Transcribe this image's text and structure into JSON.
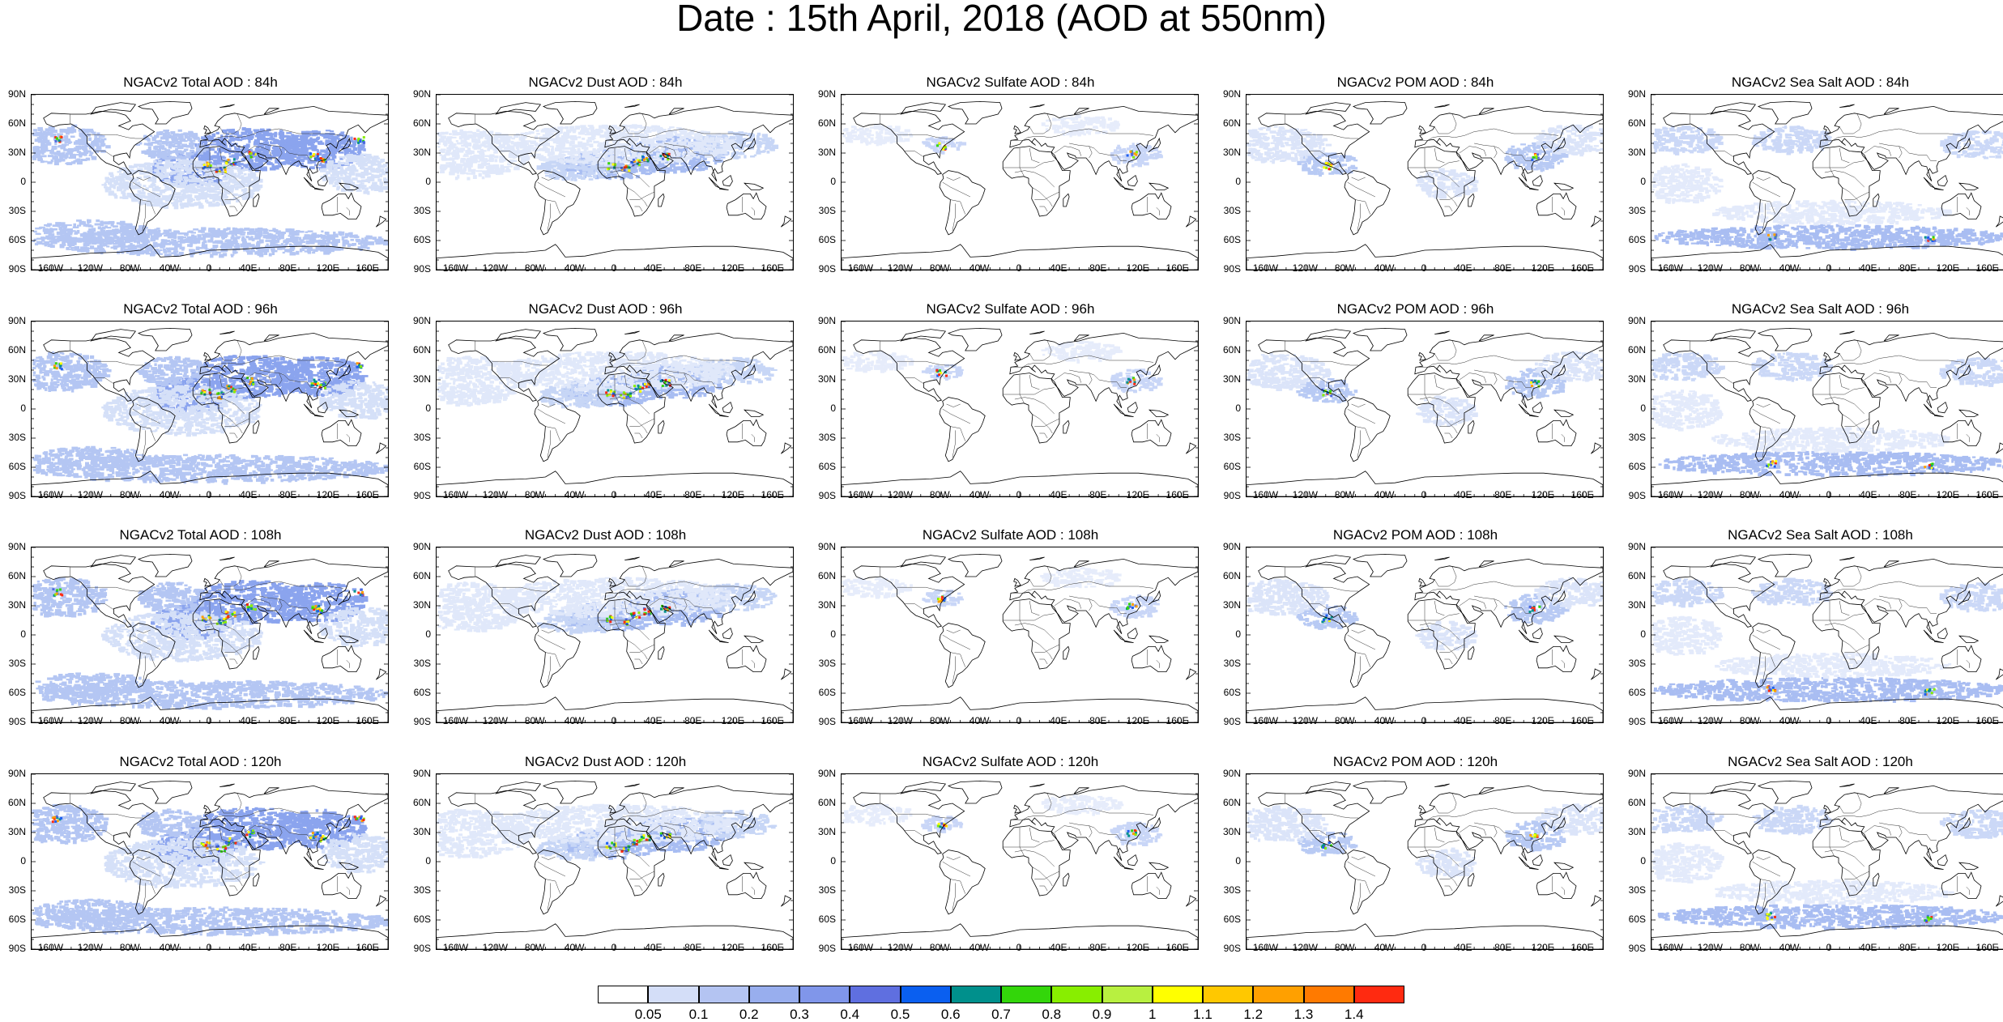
{
  "figure": {
    "title": "Date : 15th April, 2018 (AOD at 550nm)"
  },
  "axes": {
    "lat_labels": [
      "90N",
      "60N",
      "30N",
      "0",
      "30S",
      "60S",
      "90S"
    ],
    "lon_labels": [
      "160W",
      "120W",
      "80W",
      "40W",
      "0",
      "40E",
      "80E",
      "120E",
      "160E"
    ]
  },
  "panels": [
    {
      "title": "NGACv2 Total AOD : 84h",
      "species": "total",
      "lead_hours": 84
    },
    {
      "title": "NGACv2 Dust AOD : 84h",
      "species": "dust",
      "lead_hours": 84
    },
    {
      "title": "NGACv2 Sulfate AOD : 84h",
      "species": "sulfate",
      "lead_hours": 84
    },
    {
      "title": "NGACv2 POM AOD : 84h",
      "species": "pom",
      "lead_hours": 84
    },
    {
      "title": "NGACv2 Sea Salt AOD : 84h",
      "species": "seasalt",
      "lead_hours": 84
    },
    {
      "title": "NGACv2 Total AOD : 96h",
      "species": "total",
      "lead_hours": 96
    },
    {
      "title": "NGACv2 Dust AOD : 96h",
      "species": "dust",
      "lead_hours": 96
    },
    {
      "title": "NGACv2 Sulfate AOD : 96h",
      "species": "sulfate",
      "lead_hours": 96
    },
    {
      "title": "NGACv2 POM AOD : 96h",
      "species": "pom",
      "lead_hours": 96
    },
    {
      "title": "NGACv2 Sea Salt AOD : 96h",
      "species": "seasalt",
      "lead_hours": 96
    },
    {
      "title": "NGACv2 Total AOD : 108h",
      "species": "total",
      "lead_hours": 108
    },
    {
      "title": "NGACv2 Dust AOD : 108h",
      "species": "dust",
      "lead_hours": 108
    },
    {
      "title": "NGACv2 Sulfate AOD : 108h",
      "species": "sulfate",
      "lead_hours": 108
    },
    {
      "title": "NGACv2 POM AOD : 108h",
      "species": "pom",
      "lead_hours": 108
    },
    {
      "title": "NGACv2 Sea Salt AOD : 108h",
      "species": "seasalt",
      "lead_hours": 108
    },
    {
      "title": "NGACv2 Total AOD : 120h",
      "species": "total",
      "lead_hours": 120
    },
    {
      "title": "NGACv2 Dust AOD : 120h",
      "species": "dust",
      "lead_hours": 120
    },
    {
      "title": "NGACv2 Sulfate AOD : 120h",
      "species": "sulfate",
      "lead_hours": 120
    },
    {
      "title": "NGACv2 POM AOD : 120h",
      "species": "pom",
      "lead_hours": 120
    },
    {
      "title": "NGACv2 Sea Salt  AOD : 120h",
      "species": "seasalt",
      "lead_hours": 120
    }
  ],
  "colorbar": {
    "labels": [
      "0.05",
      "0.1",
      "0.2",
      "0.3",
      "0.4",
      "0.5",
      "0.6",
      "0.7",
      "0.8",
      "0.9",
      "1",
      "1.1",
      "1.2",
      "1.3",
      "1.4"
    ],
    "colors": [
      "#ffffff",
      "#d4def8",
      "#b4c4f2",
      "#98aeee",
      "#8096ea",
      "#5f6fe0",
      "#0a5ff0",
      "#00908c",
      "#33d60a",
      "#88ee00",
      "#b8f040",
      "#ffff00",
      "#ffc800",
      "#ffa000",
      "#ff7a00",
      "#ff2a10"
    ]
  },
  "haze_colors": {
    "total": [
      "#8ba4ee",
      "#b4c6f3",
      "#d5e0f8"
    ],
    "dust": [
      "#a8bdf2",
      "#c7d6f6",
      "#e0e8fa"
    ],
    "sulfate": [
      "#c9d6f7",
      "#e6ecfb"
    ],
    "pom": [
      "#b8caf4",
      "#dbe4f9"
    ],
    "seasalt": [
      "#a9bdf2",
      "#cbd8f7",
      "#e3eafb"
    ]
  },
  "hotspot_colors": [
    "#4f68de",
    "#1f5ff0",
    "#00908c",
    "#33d60a",
    "#88ee00",
    "#ffff00",
    "#ffa000",
    "#ff2a10"
  ]
}
